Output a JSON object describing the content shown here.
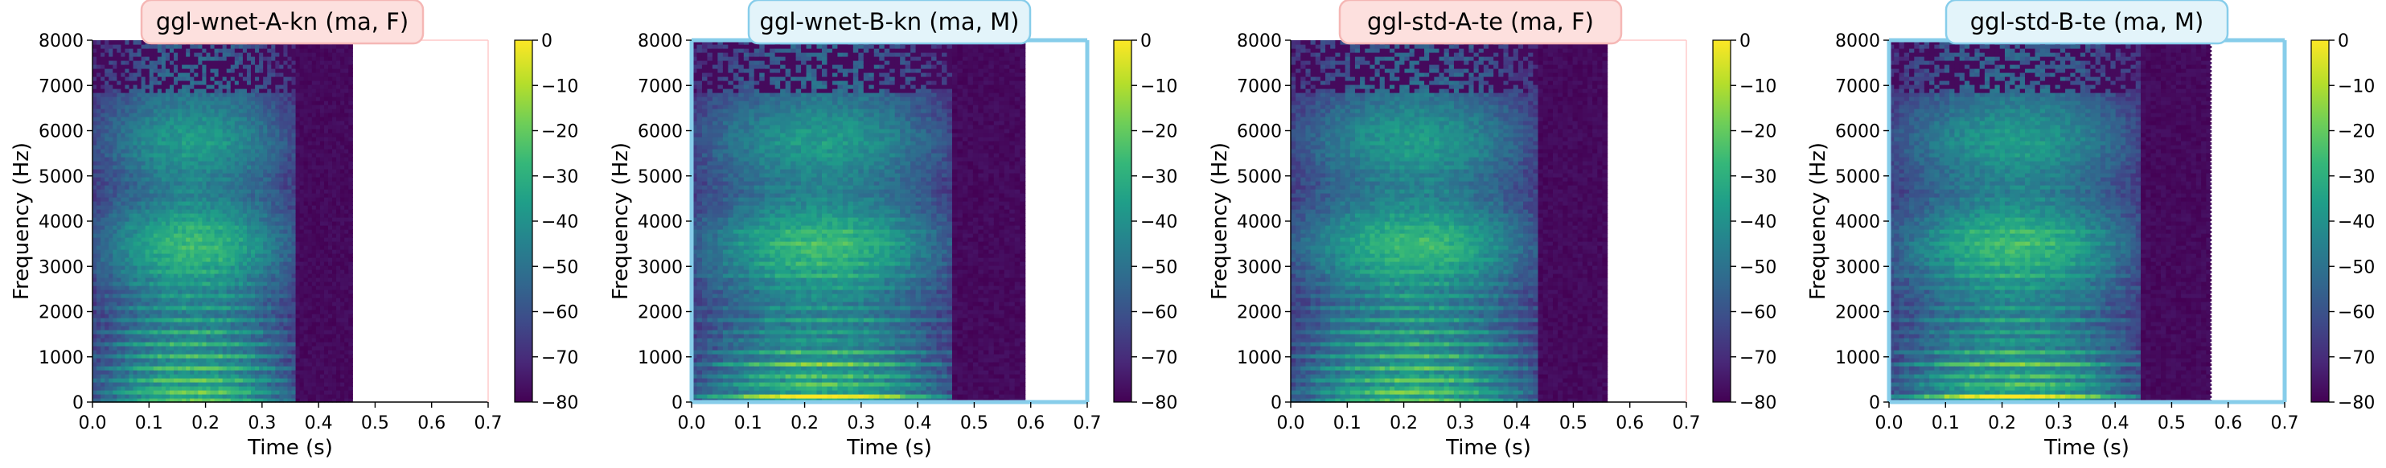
{
  "colors": {
    "female_border": "#ffc8c8",
    "female_title_bg": "#fde0de",
    "female_title_border": "#f5b7b5",
    "male_border": "#87cdea",
    "male_title_bg": "#e3f4fa",
    "male_title_border": "#87cdea",
    "colormap": [
      "#440154",
      "#482878",
      "#3e4a89",
      "#31688e",
      "#26828e",
      "#1f9e89",
      "#35b779",
      "#6ece58",
      "#b5de2b",
      "#fde725"
    ]
  },
  "chart_data": [
    {
      "type": "heatmap",
      "title": "ggl-wnet-A-kn (ma, F)",
      "speaker_gender": "F",
      "xlabel": "Time (s)",
      "ylabel": "Frequency (Hz)",
      "xlim": [
        0,
        0.7
      ],
      "ylim": [
        0,
        8000
      ],
      "x_ticks": [
        "0.0",
        "0.1",
        "0.2",
        "0.3",
        "0.4",
        "0.5",
        "0.6",
        "0.7"
      ],
      "y_ticks": [
        "0",
        "1000",
        "2000",
        "3000",
        "4000",
        "5000",
        "6000",
        "7000",
        "8000"
      ],
      "duration_s": 0.46,
      "colorbar": {
        "min": -80,
        "max": 0,
        "ticks": [
          "0",
          "−10",
          "−20",
          "−30",
          "−40",
          "−50",
          "−60",
          "−70",
          "−80"
        ]
      }
    },
    {
      "type": "heatmap",
      "title": "ggl-wnet-B-kn (ma, M)",
      "speaker_gender": "M",
      "xlabel": "Time (s)",
      "ylabel": "Frequency (Hz)",
      "xlim": [
        0,
        0.7
      ],
      "ylim": [
        0,
        8000
      ],
      "x_ticks": [
        "0.0",
        "0.1",
        "0.2",
        "0.3",
        "0.4",
        "0.5",
        "0.6",
        "0.7"
      ],
      "y_ticks": [
        "0",
        "1000",
        "2000",
        "3000",
        "4000",
        "5000",
        "6000",
        "7000",
        "8000"
      ],
      "duration_s": 0.59,
      "colorbar": {
        "min": -80,
        "max": 0,
        "ticks": [
          "0",
          "−10",
          "−20",
          "−30",
          "−40",
          "−50",
          "−60",
          "−70",
          "−80"
        ]
      }
    },
    {
      "type": "heatmap",
      "title": "ggl-std-A-te (ma, F)",
      "speaker_gender": "F",
      "xlabel": "Time (s)",
      "ylabel": "Frequency (Hz)",
      "xlim": [
        0,
        0.7
      ],
      "ylim": [
        0,
        8000
      ],
      "x_ticks": [
        "0.0",
        "0.1",
        "0.2",
        "0.3",
        "0.4",
        "0.5",
        "0.6",
        "0.7"
      ],
      "y_ticks": [
        "0",
        "1000",
        "2000",
        "3000",
        "4000",
        "5000",
        "6000",
        "7000",
        "8000"
      ],
      "duration_s": 0.56,
      "colorbar": {
        "min": -80,
        "max": 0,
        "ticks": [
          "0",
          "−10",
          "−20",
          "−30",
          "−40",
          "−50",
          "−60",
          "−70",
          "−80"
        ]
      }
    },
    {
      "type": "heatmap",
      "title": "ggl-std-B-te (ma, M)",
      "speaker_gender": "M",
      "xlabel": "Time (s)",
      "ylabel": "Frequency (Hz)",
      "xlim": [
        0,
        0.7
      ],
      "ylim": [
        0,
        8000
      ],
      "x_ticks": [
        "0.0",
        "0.1",
        "0.2",
        "0.3",
        "0.4",
        "0.5",
        "0.6",
        "0.7"
      ],
      "y_ticks": [
        "0",
        "1000",
        "2000",
        "3000",
        "4000",
        "5000",
        "6000",
        "7000",
        "8000"
      ],
      "duration_s": 0.57,
      "colorbar": {
        "min": -80,
        "max": 0,
        "ticks": [
          "0",
          "−10",
          "−20",
          "−30",
          "−40",
          "−50",
          "−60",
          "−70",
          "−80"
        ]
      }
    }
  ]
}
